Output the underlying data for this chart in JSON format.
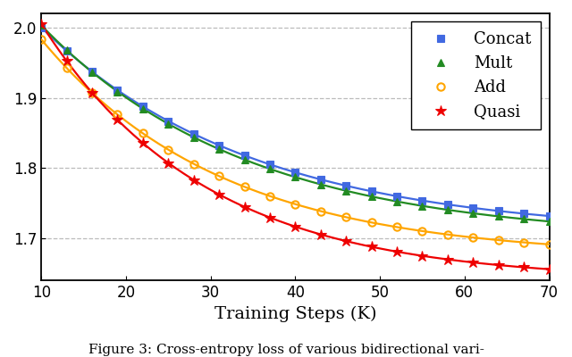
{
  "title": "",
  "xlabel": "Training Steps (K)",
  "ylabel": "",
  "caption": "Figure 3: Cross-entropy loss of various bidirectional vari-",
  "xlim": [
    10,
    70
  ],
  "ylim": [
    1.64,
    2.02
  ],
  "yticks": [
    1.7,
    1.8,
    1.9,
    2.0
  ],
  "xticks": [
    10,
    20,
    30,
    40,
    50,
    60,
    70
  ],
  "curves": {
    "Concat": {
      "color": "#4169E1",
      "marker": "s",
      "a": 0.295,
      "k": 0.04,
      "b": 1.705,
      "markersize": 5.5
    },
    "Mult": {
      "color": "#228B22",
      "marker": "^",
      "a": 0.305,
      "k": 0.041,
      "b": 1.698,
      "markersize": 6
    },
    "Add": {
      "color": "#FFA500",
      "marker": "o",
      "a": 0.31,
      "k": 0.047,
      "b": 1.673,
      "markersize": 6
    },
    "Quasi": {
      "color": "#EE0000",
      "marker": "*",
      "a": 0.365,
      "k": 0.052,
      "b": 1.64,
      "markersize": 9
    }
  },
  "grid_color": "#AAAAAA",
  "grid_style": "--",
  "grid_alpha": 0.8,
  "background_color": "#FFFFFF",
  "legend_fontsize": 13,
  "tick_fontsize": 12,
  "label_fontsize": 14,
  "linewidth": 1.6,
  "marker_every": 3
}
